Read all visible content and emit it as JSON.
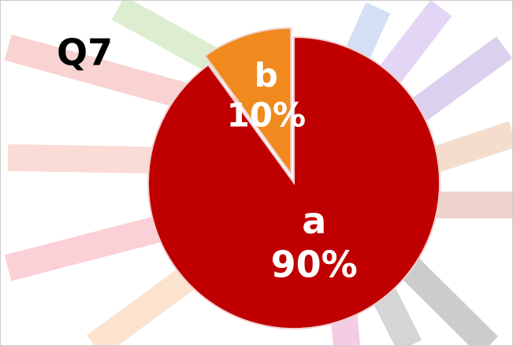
{
  "chart_data": {
    "type": "pie",
    "title": "Q7",
    "categories": [
      "a",
      "b"
    ],
    "values": [
      90,
      10
    ],
    "value_labels": [
      "90%",
      "10%"
    ],
    "colors": [
      "#c00000",
      "#f08a1e"
    ]
  }
}
